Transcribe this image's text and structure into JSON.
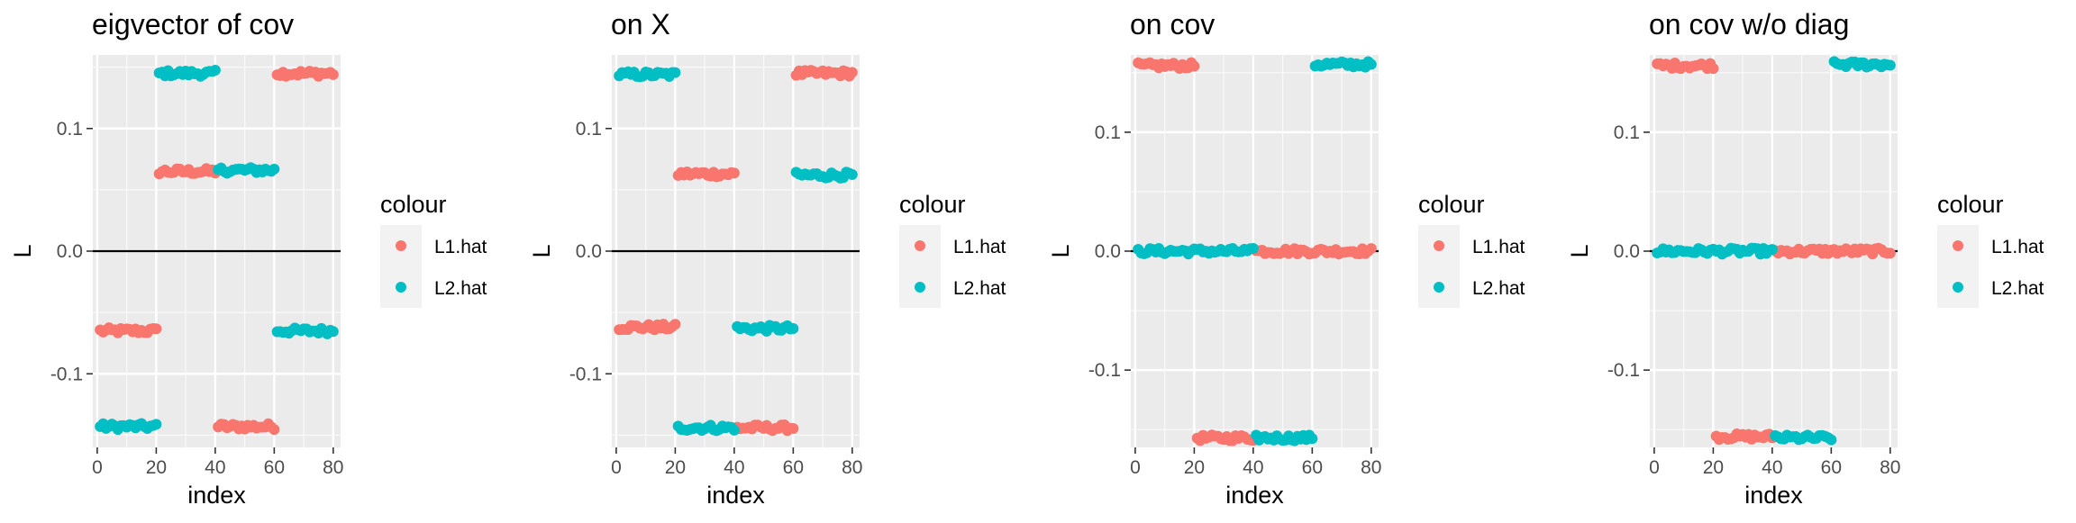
{
  "legend": {
    "title": "colour",
    "entries": [
      {
        "label": "L1.hat",
        "color": "#F8766D"
      },
      {
        "label": "L2.hat",
        "color": "#00BFC4"
      }
    ]
  },
  "chart_data": [
    {
      "type": "scatter",
      "title": "eigvector of cov",
      "xlabel": "index",
      "ylabel": "L",
      "xlim": [
        -1.5,
        82.5
      ],
      "ylim": [
        -0.16,
        0.16
      ],
      "x_ticks": [
        0,
        20,
        40,
        60,
        80
      ],
      "y_ticks": [
        0.1,
        0.0,
        -0.1
      ],
      "y_tick_labels": [
        "0.1",
        "0.0",
        "-0.1"
      ],
      "hline": 0,
      "grid": true,
      "legend_position": "right",
      "series": [
        {
          "name": "L1.hat",
          "color": "#F8766D",
          "segments": [
            {
              "x": [
                1,
                20
              ],
              "y": -0.065
            },
            {
              "x": [
                21,
                40
              ],
              "y": 0.065
            },
            {
              "x": [
                41,
                60
              ],
              "y": -0.143
            },
            {
              "x": [
                61,
                80
              ],
              "y": 0.145
            }
          ]
        },
        {
          "name": "L2.hat",
          "color": "#00BFC4",
          "segments": [
            {
              "x": [
                1,
                20
              ],
              "y": -0.143
            },
            {
              "x": [
                21,
                40
              ],
              "y": 0.145
            },
            {
              "x": [
                41,
                60
              ],
              "y": 0.066
            },
            {
              "x": [
                61,
                80
              ],
              "y": -0.065
            }
          ]
        }
      ]
    },
    {
      "type": "scatter",
      "title": "on X",
      "xlabel": "index",
      "ylabel": "L",
      "xlim": [
        -1.5,
        82.5
      ],
      "ylim": [
        -0.16,
        0.16
      ],
      "x_ticks": [
        0,
        20,
        40,
        60,
        80
      ],
      "y_ticks": [
        0.1,
        0.0,
        -0.1
      ],
      "y_tick_labels": [
        "0.1",
        "0.0",
        "-0.1"
      ],
      "hline": 0,
      "grid": true,
      "legend_position": "right",
      "series": [
        {
          "name": "L1.hat",
          "color": "#F8766D",
          "segments": [
            {
              "x": [
                1,
                20
              ],
              "y": -0.062
            },
            {
              "x": [
                21,
                40
              ],
              "y": 0.063
            },
            {
              "x": [
                41,
                60
              ],
              "y": -0.144
            },
            {
              "x": [
                61,
                80
              ],
              "y": 0.145
            }
          ]
        },
        {
          "name": "L2.hat",
          "color": "#00BFC4",
          "segments": [
            {
              "x": [
                1,
                20
              ],
              "y": 0.144
            },
            {
              "x": [
                21,
                40
              ],
              "y": -0.144
            },
            {
              "x": [
                41,
                60
              ],
              "y": -0.063
            },
            {
              "x": [
                61,
                80
              ],
              "y": 0.062
            }
          ]
        }
      ]
    },
    {
      "type": "scatter",
      "title": "on cov",
      "xlabel": "index",
      "ylabel": "L",
      "xlim": [
        -1.5,
        82.5
      ],
      "ylim": [
        -0.165,
        0.165
      ],
      "x_ticks": [
        0,
        20,
        40,
        60,
        80
      ],
      "y_ticks": [
        0.1,
        0.0,
        -0.1
      ],
      "y_tick_labels": [
        "0.1",
        "0.0",
        "-0.1"
      ],
      "hline": 0,
      "grid": true,
      "legend_position": "right",
      "series": [
        {
          "name": "L1.hat",
          "color": "#F8766D",
          "segments": [
            {
              "x": [
                1,
                20
              ],
              "y": 0.156
            },
            {
              "x": [
                21,
                40
              ],
              "y": -0.157
            },
            {
              "x": [
                41,
                80
              ],
              "y": 0.0
            }
          ]
        },
        {
          "name": "L2.hat",
          "color": "#00BFC4",
          "segments": [
            {
              "x": [
                1,
                40
              ],
              "y": 0.0
            },
            {
              "x": [
                41,
                60
              ],
              "y": -0.157
            },
            {
              "x": [
                61,
                80
              ],
              "y": 0.157
            }
          ]
        }
      ]
    },
    {
      "type": "scatter",
      "title": "on cov w/o diag",
      "xlabel": "index",
      "ylabel": "L",
      "xlim": [
        -1.5,
        82.5
      ],
      "ylim": [
        -0.165,
        0.165
      ],
      "x_ticks": [
        0,
        20,
        40,
        60,
        80
      ],
      "y_ticks": [
        0.1,
        0.0,
        -0.1
      ],
      "y_tick_labels": [
        "0.1",
        "0.0",
        "-0.1"
      ],
      "hline": 0,
      "grid": true,
      "legend_position": "right",
      "series": [
        {
          "name": "L1.hat",
          "color": "#F8766D",
          "segments": [
            {
              "x": [
                1,
                20
              ],
              "y": 0.156
            },
            {
              "x": [
                21,
                40
              ],
              "y": -0.156
            },
            {
              "x": [
                41,
                80
              ],
              "y": 0.0
            }
          ]
        },
        {
          "name": "L2.hat",
          "color": "#00BFC4",
          "segments": [
            {
              "x": [
                1,
                40
              ],
              "y": 0.0
            },
            {
              "x": [
                41,
                60
              ],
              "y": -0.157
            },
            {
              "x": [
                61,
                80
              ],
              "y": 0.157
            }
          ]
        }
      ]
    }
  ]
}
